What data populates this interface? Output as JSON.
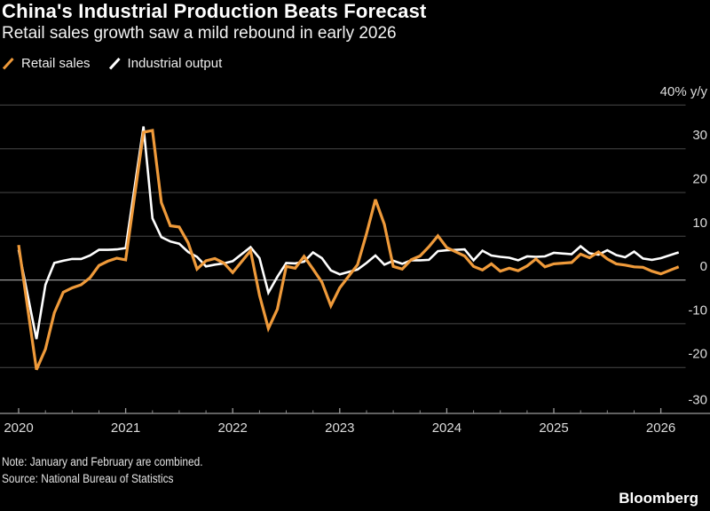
{
  "footer": {
    "note": "Note: January and February are combined.",
    "source": "Source: National Bureau of Statistics",
    "brand": "Bloomberg"
  },
  "chart_data": {
    "type": "line",
    "title": "China's Industrial Production Beats Forecast",
    "subtitle": "Retail sales growth saw a mild rebound in early 2026",
    "unit": "% y/y",
    "legend_position": "top-left",
    "grid": true,
    "y_axis": {
      "tick_values": [
        40,
        30,
        20,
        10,
        0,
        -10,
        -20,
        -30
      ],
      "tick_labels": [
        "40% y/y",
        "30",
        "20",
        "10",
        "0",
        "-10",
        "-20",
        "-30"
      ],
      "ylim": [
        -30,
        40
      ],
      "zero_line_highlighted": true
    },
    "x_axis": {
      "tick_labels": [
        "2020",
        "2021",
        "2022",
        "2023",
        "2024",
        "2025",
        "2026"
      ],
      "minor_tick_interval_months": 3,
      "range": [
        "Dec 2019",
        "Feb 2026"
      ]
    },
    "x_months_since_dec_2019": [
      0,
      2,
      3,
      4,
      5,
      6,
      7,
      8,
      9,
      10,
      11,
      12,
      14,
      15,
      16,
      17,
      18,
      19,
      20,
      21,
      22,
      23,
      24,
      26,
      27,
      28,
      29,
      30,
      31,
      32,
      33,
      34,
      35,
      36,
      38,
      39,
      40,
      41,
      42,
      43,
      44,
      45,
      46,
      47,
      48,
      50,
      51,
      52,
      53,
      54,
      55,
      56,
      57,
      58,
      59,
      60,
      62,
      63,
      64,
      65,
      66,
      67,
      68,
      69,
      70,
      71,
      72,
      74
    ],
    "series": [
      {
        "name": "Retail sales",
        "color": "#EF9A3A",
        "stroke_width": 3.2,
        "values": [
          8.0,
          -20.5,
          -15.8,
          -7.5,
          -2.8,
          -1.8,
          -1.1,
          0.5,
          3.3,
          4.3,
          5.0,
          4.6,
          33.8,
          34.2,
          17.7,
          12.4,
          12.1,
          8.5,
          2.5,
          4.4,
          4.9,
          3.9,
          1.7,
          6.7,
          -3.5,
          -11.1,
          -6.7,
          3.1,
          2.7,
          5.4,
          2.5,
          -0.5,
          -5.9,
          -1.8,
          3.5,
          10.6,
          18.4,
          12.7,
          3.1,
          2.5,
          4.6,
          5.5,
          7.6,
          10.1,
          7.4,
          5.5,
          3.1,
          2.3,
          3.7,
          2.0,
          2.7,
          2.1,
          3.2,
          4.8,
          3.0,
          3.7,
          4.0,
          5.9,
          5.1,
          6.4,
          4.8,
          3.7,
          3.4,
          3.0,
          2.9,
          2.0,
          1.4,
          3.0
        ]
      },
      {
        "name": "Industrial output",
        "color": "#FFFFFF",
        "stroke_width": 2.6,
        "values": [
          6.9,
          -13.5,
          -1.1,
          3.9,
          4.4,
          4.8,
          4.8,
          5.6,
          6.9,
          6.9,
          7.0,
          7.3,
          35.1,
          14.1,
          9.8,
          8.8,
          8.3,
          6.4,
          5.3,
          3.1,
          3.5,
          3.8,
          4.3,
          7.5,
          5.0,
          -2.9,
          0.7,
          3.9,
          3.8,
          4.2,
          6.3,
          5.0,
          2.2,
          1.3,
          2.4,
          3.9,
          5.6,
          3.5,
          4.4,
          3.7,
          4.5,
          4.5,
          4.6,
          6.6,
          6.8,
          7.0,
          4.5,
          6.7,
          5.6,
          5.3,
          5.1,
          4.5,
          5.4,
          5.3,
          5.4,
          6.2,
          5.9,
          7.7,
          6.1,
          5.8,
          6.8,
          5.7,
          5.2,
          6.5,
          4.9,
          4.6,
          5.0,
          6.3
        ]
      }
    ],
    "colors": {
      "background": "#000000",
      "gridline": "#484848",
      "zero_line": "#999999",
      "axis": "#9b9b9b",
      "tick_label": "#dcdcdc"
    }
  }
}
